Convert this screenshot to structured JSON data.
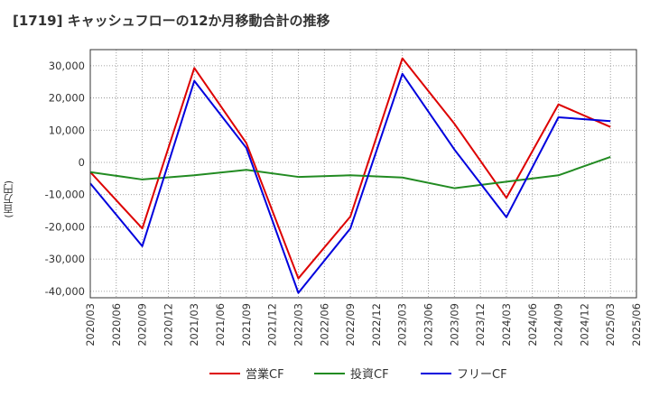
{
  "chart_data": {
    "type": "line",
    "title": "[1719]  キャッシュフローの12か月移動合計の推移",
    "ylabel": "(百万円)",
    "xlabel": "",
    "ylim": [
      -42000,
      35000
    ],
    "yticks": [
      30000,
      20000,
      10000,
      0,
      -10000,
      -20000,
      -30000,
      -40000
    ],
    "ytick_labels": [
      "30,000",
      "20,000",
      "10,000",
      "0",
      "-10,000",
      "-20,000",
      "-30,000",
      "-40,000"
    ],
    "grid": true,
    "legend_position": "bottom",
    "categories": [
      "2020/03",
      "2020/06",
      "2020/09",
      "2020/12",
      "2021/03",
      "2021/06",
      "2021/09",
      "2021/12",
      "2022/03",
      "2022/06",
      "2022/09",
      "2022/12",
      "2023/03",
      "2023/06",
      "2023/09",
      "2023/12",
      "2024/03",
      "2024/06",
      "2024/09",
      "2024/12",
      "2025/03",
      "2025/06"
    ],
    "series": [
      {
        "name": "営業CF",
        "color": "#dd0000",
        "values": [
          -3000,
          null,
          -20500,
          null,
          29300,
          null,
          6000,
          null,
          -36000,
          null,
          -16800,
          null,
          32300,
          null,
          12000,
          null,
          -11000,
          null,
          18000,
          null,
          11000,
          null
        ]
      },
      {
        "name": "投資CF",
        "color": "#228b22",
        "values": [
          -3000,
          null,
          -5300,
          null,
          -4000,
          null,
          -2300,
          null,
          -4500,
          null,
          -4000,
          null,
          -4700,
          null,
          -8000,
          null,
          -6000,
          null,
          -4000,
          null,
          1700,
          null
        ]
      },
      {
        "name": "フリーCF",
        "color": "#0000dd",
        "values": [
          -6500,
          null,
          -26000,
          null,
          25300,
          null,
          4500,
          null,
          -40500,
          null,
          -20500,
          null,
          27500,
          null,
          4000,
          null,
          -17000,
          null,
          14000,
          null,
          12800,
          null
        ]
      }
    ]
  }
}
